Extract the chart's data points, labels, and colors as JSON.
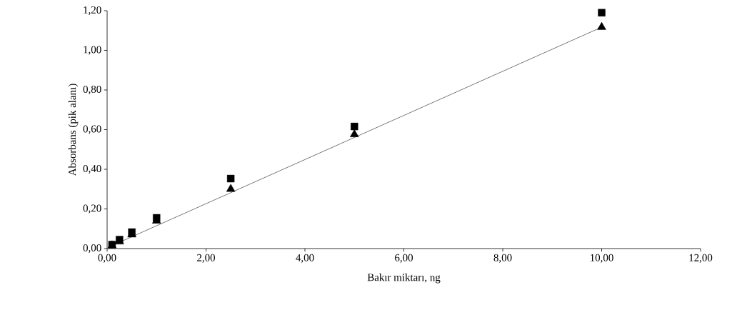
{
  "chart_data": {
    "type": "scatter",
    "xlabel": "Bakır miktarı, ng",
    "ylabel": "Absorbans (pik alanı)",
    "xlim": [
      0,
      12
    ],
    "ylim": [
      0,
      1.2
    ],
    "xticks": [
      {
        "value": 0,
        "label": "0,00"
      },
      {
        "value": 2,
        "label": "2,00"
      },
      {
        "value": 4,
        "label": "4,00"
      },
      {
        "value": 6,
        "label": "6,00"
      },
      {
        "value": 8,
        "label": "8,00"
      },
      {
        "value": 10,
        "label": "10,00"
      },
      {
        "value": 12,
        "label": "12,00"
      }
    ],
    "yticks": [
      {
        "value": 0,
        "label": "0,00"
      },
      {
        "value": 0.2,
        "label": "0,20"
      },
      {
        "value": 0.4,
        "label": "0,40"
      },
      {
        "value": 0.6,
        "label": "0,60"
      },
      {
        "value": 0.8,
        "label": "0,80"
      },
      {
        "value": 1.0,
        "label": "1,00"
      },
      {
        "value": 1.2,
        "label": "1,20"
      }
    ],
    "grid": false,
    "series": [
      {
        "type": "line",
        "color": "#555555",
        "marker": "none",
        "line_style": "solid",
        "x": [
          0.1,
          10
        ],
        "values": [
          0.015,
          1.117
        ]
      },
      {
        "color": "#000000",
        "marker": "square",
        "x": [
          0.1,
          0.25,
          0.5,
          1,
          2.5,
          5,
          10
        ],
        "values": [
          0.02,
          0.045,
          0.083,
          0.155,
          0.353,
          0.616,
          1.19
        ]
      },
      {
        "color": "#000000",
        "marker": "triangle",
        "x": [
          0.1,
          0.25,
          0.5,
          1,
          2.5,
          5,
          10
        ],
        "values": [
          0.015,
          0.035,
          0.07,
          0.14,
          0.3,
          0.576,
          1.117
        ]
      }
    ]
  }
}
